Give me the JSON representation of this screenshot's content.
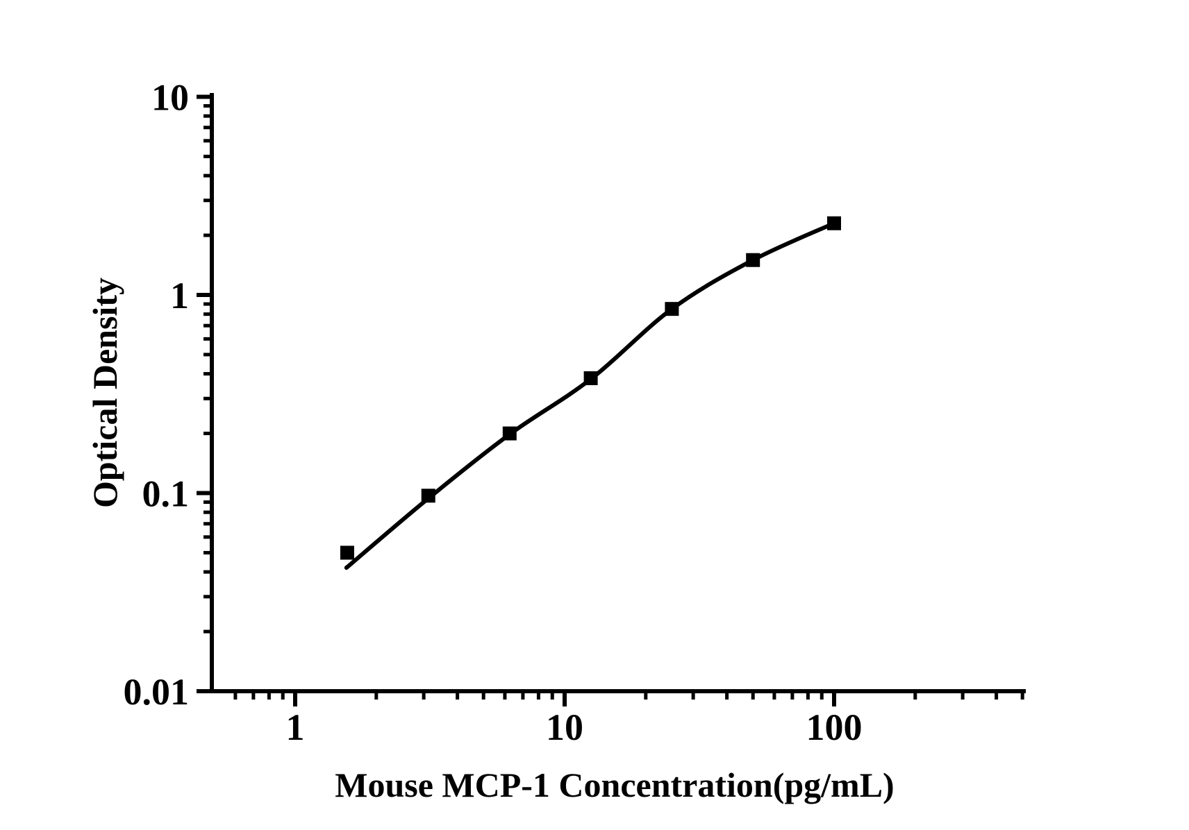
{
  "colors": {
    "background": "#ffffff",
    "ink": "#000000"
  },
  "chart_data": {
    "type": "scatter",
    "title": "",
    "xlabel": "Mouse MCP-1 Concentration(pg/mL)",
    "ylabel": "Optical Density",
    "x_scale": "log",
    "y_scale": "log",
    "xlim": [
      0.5,
      500
    ],
    "ylim": [
      0.01,
      10
    ],
    "grid": false,
    "legend": null,
    "x_major_ticks": [
      {
        "value": 1,
        "label": "1"
      },
      {
        "value": 10,
        "label": "10"
      },
      {
        "value": 100,
        "label": "100"
      }
    ],
    "x_minor_ticks": [
      0.6,
      0.7,
      0.8,
      0.9,
      2,
      3,
      4,
      5,
      6,
      7,
      8,
      9,
      20,
      30,
      40,
      50,
      60,
      70,
      80,
      90,
      200,
      300,
      400,
      500
    ],
    "y_major_ticks": [
      {
        "value": 0.01,
        "label": "0.01"
      },
      {
        "value": 0.1,
        "label": "0.1"
      },
      {
        "value": 1,
        "label": "1"
      },
      {
        "value": 10,
        "label": "10"
      }
    ],
    "y_minor_ticks": [
      0.02,
      0.03,
      0.04,
      0.05,
      0.06,
      0.07,
      0.08,
      0.09,
      0.2,
      0.3,
      0.4,
      0.5,
      0.6,
      0.7,
      0.8,
      0.9,
      2,
      3,
      4,
      5,
      6,
      7,
      8,
      9
    ],
    "series": [
      {
        "name": "standard-curve",
        "marker": "filled-square",
        "color": "#000000",
        "points": [
          {
            "x": 1.56,
            "y": 0.05
          },
          {
            "x": 3.12,
            "y": 0.097
          },
          {
            "x": 6.25,
            "y": 0.2
          },
          {
            "x": 12.5,
            "y": 0.38
          },
          {
            "x": 25,
            "y": 0.85
          },
          {
            "x": 50,
            "y": 1.5
          },
          {
            "x": 100,
            "y": 2.3
          }
        ],
        "fit_curve": [
          [
            1.55,
            0.042
          ],
          [
            3.12,
            0.094
          ],
          [
            6.25,
            0.198
          ],
          [
            12.5,
            0.376
          ],
          [
            25,
            0.85
          ],
          [
            50,
            1.5
          ],
          [
            100,
            2.3
          ]
        ]
      }
    ]
  }
}
